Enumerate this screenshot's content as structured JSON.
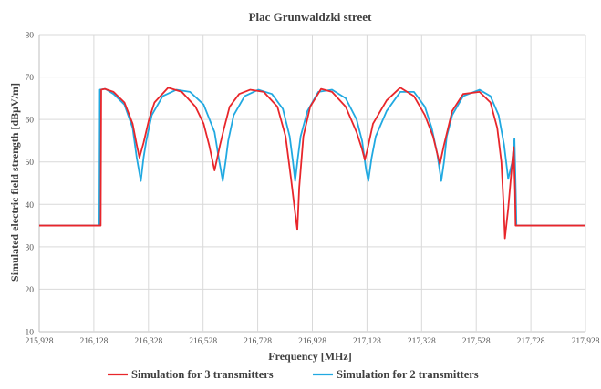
{
  "chart_data": {
    "type": "line",
    "title": "Plac Grunwaldzki  street",
    "xlabel": "Frequency [MHz]",
    "ylabel": "Simulated electric field strength [dBμV/m]",
    "xlim": [
      215.928,
      217.928
    ],
    "ylim": [
      10,
      80
    ],
    "x_tick_labels": [
      "215,928",
      "216,128",
      "216,328",
      "216,528",
      "216,728",
      "216,928",
      "217,128",
      "217,328",
      "217,528",
      "217,728",
      "217,928"
    ],
    "y_tick_labels": [
      "10",
      "20",
      "30",
      "40",
      "50",
      "60",
      "70",
      "80"
    ],
    "grid": true,
    "legend_position": "bottom",
    "series": [
      {
        "name": "Simulation for 3 transmitters",
        "color": "#e8262b",
        "x": [
          215.928,
          216.153,
          216.155,
          216.168,
          216.2,
          216.24,
          216.27,
          216.285,
          216.295,
          216.31,
          216.33,
          216.35,
          216.4,
          216.45,
          216.5,
          216.53,
          216.55,
          216.57,
          216.59,
          216.605,
          216.625,
          216.66,
          216.7,
          216.75,
          216.8,
          216.83,
          216.85,
          216.865,
          216.873,
          216.88,
          216.895,
          216.92,
          216.96,
          217.0,
          217.05,
          217.09,
          217.11,
          217.12,
          217.13,
          217.15,
          217.2,
          217.25,
          217.3,
          217.34,
          217.37,
          217.385,
          217.395,
          217.41,
          217.44,
          217.48,
          217.54,
          217.58,
          217.605,
          217.62,
          217.628,
          217.633,
          217.645,
          217.66,
          217.665,
          217.67,
          217.672,
          217.928
        ],
        "y": [
          35,
          35,
          67,
          67.2,
          66.5,
          64,
          59,
          54,
          51,
          54.5,
          60,
          64,
          67.5,
          66.5,
          63,
          59,
          54,
          48,
          54,
          58,
          63,
          66,
          67,
          66.5,
          63,
          56,
          46,
          38,
          34,
          44,
          56,
          63,
          67.2,
          66.5,
          63,
          57,
          53,
          50.5,
          53,
          59,
          64.5,
          67.5,
          65.5,
          61,
          56,
          52,
          49.5,
          54,
          62,
          66,
          66.5,
          64,
          58,
          50,
          40,
          32,
          39,
          50,
          53.5,
          43,
          35,
          35
        ]
      },
      {
        "name": "Simulation for 2 transmitters",
        "color": "#21a9e1",
        "x": [
          215.928,
          216.148,
          216.15,
          216.17,
          216.2,
          216.24,
          216.27,
          216.285,
          216.3,
          216.31,
          216.32,
          216.34,
          216.38,
          216.43,
          216.48,
          216.53,
          216.57,
          216.585,
          216.6,
          216.61,
          216.62,
          216.64,
          216.68,
          216.73,
          216.78,
          216.82,
          216.845,
          216.857,
          216.865,
          216.875,
          216.885,
          216.91,
          216.95,
          217.0,
          217.05,
          217.09,
          217.11,
          217.125,
          217.133,
          217.145,
          217.16,
          217.2,
          217.25,
          217.3,
          217.34,
          217.365,
          217.385,
          217.4,
          217.41,
          217.42,
          217.44,
          217.48,
          217.54,
          217.58,
          217.61,
          217.63,
          217.645,
          217.66,
          217.668,
          217.673,
          217.675,
          217.928
        ],
        "y": [
          35,
          35,
          67,
          67.2,
          66,
          63.5,
          58,
          51,
          45.5,
          51,
          55,
          61,
          65.5,
          67,
          66.5,
          63.5,
          57,
          51,
          45.5,
          50,
          55,
          61,
          65.5,
          67,
          66,
          62.5,
          56,
          50,
          45.5,
          51,
          56,
          62,
          66.5,
          67,
          65,
          60,
          55,
          48,
          45.5,
          51,
          56,
          62,
          66.5,
          66.5,
          63,
          58,
          52,
          45.5,
          50,
          56,
          61,
          65.5,
          67,
          65.5,
          61,
          54,
          46,
          50,
          55.5,
          42,
          35,
          35
        ]
      }
    ]
  }
}
